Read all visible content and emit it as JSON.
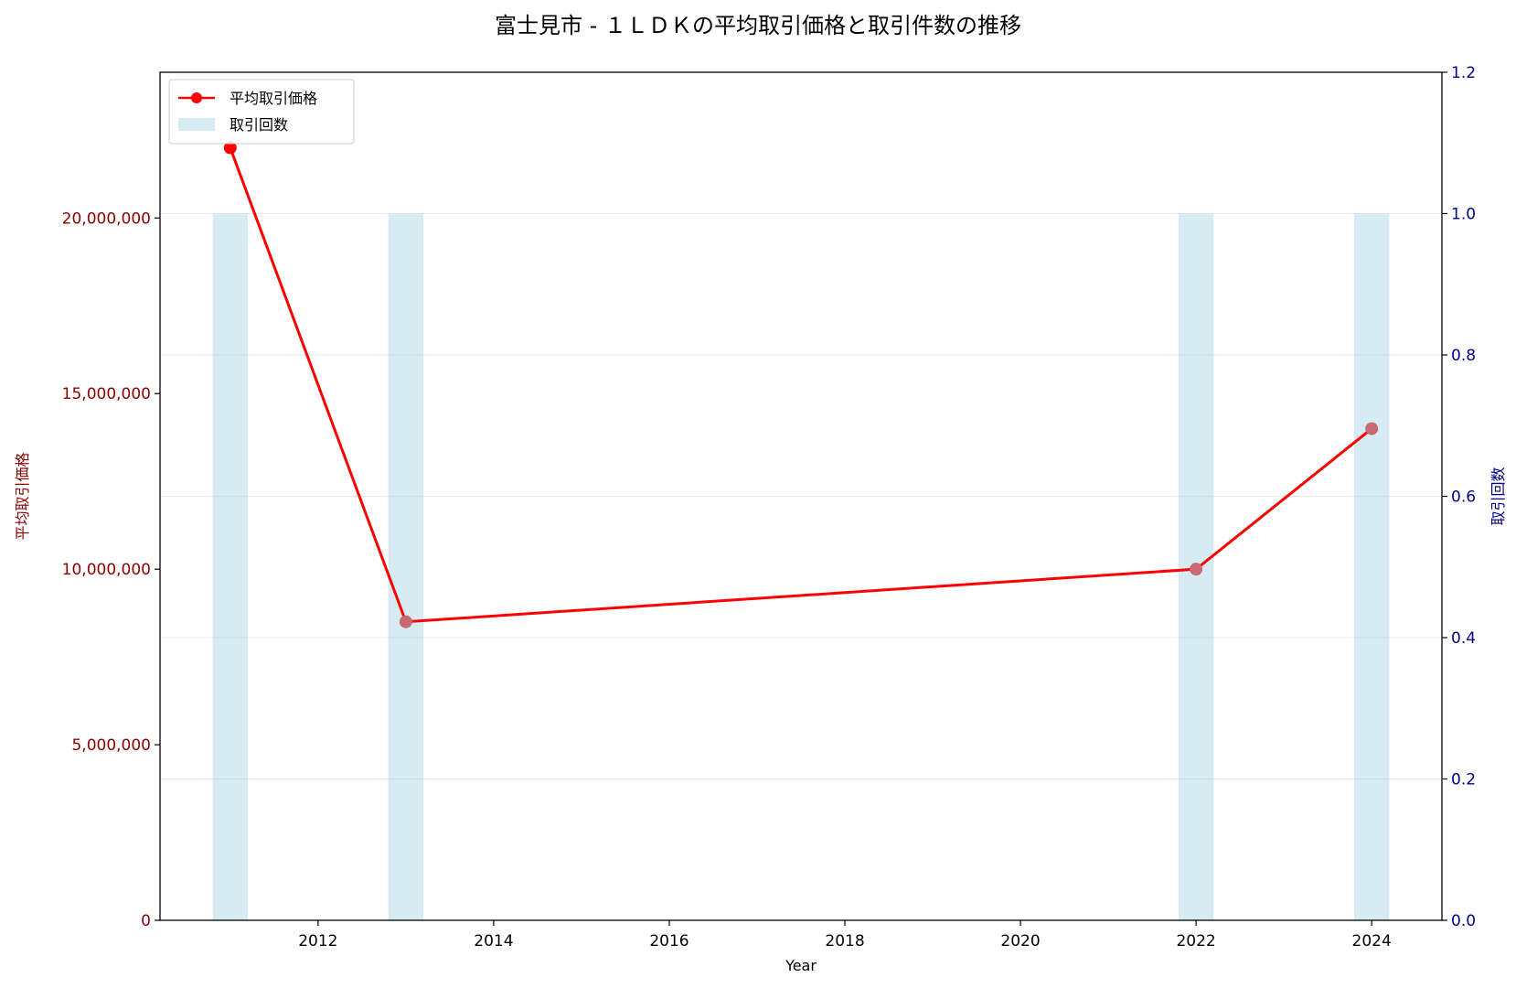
{
  "chart_data": {
    "type": "line+bar",
    "title": "富士見市 - １ＬＤＫの平均取引価格と取引件数の推移",
    "xlabel": "Year",
    "ylabel_left": "平均取引価格",
    "ylabel_right": "取引回数",
    "x_ticks": [
      2012,
      2014,
      2016,
      2018,
      2020,
      2022,
      2024
    ],
    "x_range": [
      2010.2,
      2024.8
    ],
    "y_left_ticks": [
      "0",
      "5,000,000",
      "10,000,000",
      "15,000,000",
      "20,000,000"
    ],
    "y_left_tick_values": [
      0,
      5000000,
      10000000,
      15000000,
      20000000
    ],
    "y_left_range": [
      0,
      24150000
    ],
    "y_right_ticks": [
      "0.0",
      "0.2",
      "0.4",
      "0.6",
      "0.8",
      "1.0",
      "1.2"
    ],
    "y_right_tick_values": [
      0,
      0.2,
      0.4,
      0.6,
      0.8,
      1.0,
      1.2
    ],
    "y_right_range": [
      0,
      1.2
    ],
    "grid": "horizontal",
    "legend_position": "top-left",
    "series": [
      {
        "name": "平均取引価格",
        "kind": "line",
        "axis": "left",
        "color": "#ff0000",
        "x": [
          2011,
          2013,
          2022,
          2024
        ],
        "values": [
          22000000,
          8500000,
          10000000,
          14000000
        ]
      },
      {
        "name": "取引回数",
        "kind": "bar",
        "axis": "right",
        "color": "#add8e6",
        "x": [
          2011,
          2013,
          2022,
          2024
        ],
        "values": [
          1,
          1,
          1,
          1
        ]
      }
    ],
    "colors": {
      "left_axis": "#8b0000",
      "right_axis": "#00008b",
      "bar_fill": "#add8e6",
      "line": "#ff0000"
    }
  }
}
